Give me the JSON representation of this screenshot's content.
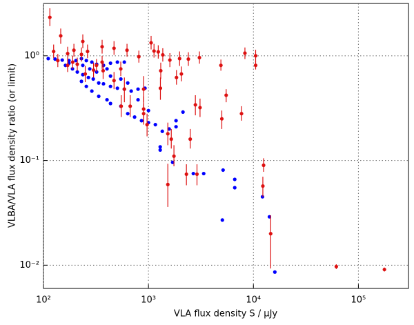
{
  "chart_data": {
    "type": "scatter",
    "xlabel": "VLA flux density S / μJy",
    "ylabel": "VLBA/VLA flux density ratio (or limit)",
    "log_x": true,
    "log_y": true,
    "grid": true,
    "xlim": [
      100,
      300000
    ],
    "ylim": [
      0.006,
      3.16
    ],
    "xticks": [
      {
        "value": 100,
        "label": "10²"
      },
      {
        "value": 1000,
        "label": "10³"
      },
      {
        "value": 10000,
        "label": "10⁴"
      },
      {
        "value": 100000,
        "label": "10⁵"
      }
    ],
    "yticks": [
      {
        "value": 0.01,
        "label": "10⁻²"
      },
      {
        "value": 0.1,
        "label": "10⁻¹"
      },
      {
        "value": 1,
        "label": "10⁰"
      }
    ],
    "series": [
      {
        "color": "#0000ff",
        "x": [
          111,
          129,
          151,
          175,
          204,
          230,
          256,
          289,
          321,
          373,
          435,
          506,
          589,
          162,
          189,
          210,
          237,
          268,
          298,
          336,
          373,
          435,
          506,
          589,
          685,
          796,
          927,
          230,
          256,
          289,
          336,
          403,
          435,
          546,
          635,
          738,
          859,
          1000,
          1164,
          1355,
          1575,
          1832,
          2133,
          1832,
          1294,
          1294,
          1700,
          2677,
          3360,
          5140,
          6640,
          6640,
          5060,
          14200,
          16000,
          12200,
          237,
          321,
          435,
          635,
          796,
          1000,
          175,
          276,
          403,
          546
        ],
        "values": [
          0.94,
          0.93,
          0.91,
          0.9,
          0.9,
          0.94,
          0.9,
          0.87,
          0.83,
          0.81,
          0.85,
          0.87,
          0.87,
          0.81,
          0.75,
          0.7,
          0.66,
          0.62,
          0.6,
          0.55,
          0.54,
          0.51,
          0.49,
          0.48,
          0.46,
          0.48,
          0.49,
          0.57,
          0.51,
          0.46,
          0.41,
          0.38,
          0.35,
          0.33,
          0.28,
          0.26,
          0.24,
          0.23,
          0.22,
          0.19,
          0.2,
          0.21,
          0.29,
          0.24,
          0.135,
          0.126,
          0.096,
          0.075,
          0.075,
          0.081,
          0.066,
          0.055,
          0.027,
          0.029,
          0.0086,
          0.045,
          0.81,
          0.7,
          0.64,
          0.55,
          0.38,
          0.3,
          0.85,
          0.75,
          0.75,
          0.6
        ]
      },
      {
        "color": "#dd1111",
        "x": [
          115,
          125,
          146,
          137,
          195,
          237,
          263,
          362,
          470,
          625,
          810,
          1060,
          1130,
          1240,
          1370,
          1310,
          1600,
          1980,
          2400,
          3060,
          4900,
          8300,
          10500,
          10500,
          2060,
          1850,
          1300,
          900,
          590,
          470,
          370,
          300,
          250,
          190,
          210,
          170,
          170,
          230,
          5500,
          2800,
          3100,
          5000,
          7700,
          900,
          970,
          900,
          670,
          550,
          1530,
          1650,
          2500,
          1750,
          2300,
          2900,
          1530,
          12500,
          12300,
          14600,
          61600,
          177000,
          545,
          362,
          320
        ],
        "values": [
          2.33,
          1.1,
          1.55,
          0.9,
          1.13,
          1.37,
          1.1,
          1.22,
          1.18,
          1.13,
          0.98,
          1.33,
          1.11,
          1.09,
          1.02,
          0.72,
          0.91,
          0.94,
          0.93,
          0.96,
          0.81,
          1.06,
          1.0,
          0.81,
          0.67,
          0.62,
          0.49,
          0.48,
          0.48,
          0.58,
          0.72,
          0.73,
          0.67,
          0.87,
          0.83,
          0.81,
          1.05,
          1.03,
          0.42,
          0.34,
          0.32,
          0.25,
          0.28,
          0.31,
          0.22,
          0.28,
          0.33,
          0.33,
          0.18,
          0.16,
          0.16,
          0.11,
          0.074,
          0.074,
          0.059,
          0.09,
          0.057,
          0.02,
          0.0097,
          0.0091,
          0.75,
          0.87,
          0.81
        ],
        "ylow": [
          1.92,
          0.95,
          1.3,
          0.78,
          0.98,
          1.18,
          0.95,
          1.05,
          1.02,
          0.98,
          0.86,
          1.15,
          0.96,
          0.94,
          0.88,
          0.6,
          0.78,
          0.8,
          0.8,
          0.84,
          0.72,
          0.93,
          0.87,
          0.74,
          0.57,
          0.53,
          0.38,
          0.36,
          0.36,
          0.48,
          0.6,
          0.62,
          0.56,
          0.75,
          0.72,
          0.7,
          0.9,
          0.88,
          0.36,
          0.27,
          0.26,
          0.2,
          0.24,
          0.23,
          0.17,
          0.22,
          0.26,
          0.26,
          0.14,
          0.13,
          0.13,
          0.088,
          0.058,
          0.058,
          0.036,
          0.078,
          0.045,
          0.0093,
          0.0092,
          0.0087,
          0.64,
          0.75,
          0.7
        ],
        "yhigh": [
          2.84,
          1.28,
          1.82,
          1.04,
          1.3,
          1.6,
          1.28,
          1.42,
          1.38,
          1.3,
          1.12,
          1.55,
          1.3,
          1.26,
          1.18,
          0.86,
          1.06,
          1.1,
          1.08,
          1.1,
          0.92,
          1.2,
          1.14,
          0.88,
          0.79,
          0.73,
          0.62,
          0.64,
          0.62,
          0.7,
          0.86,
          0.86,
          0.8,
          1.0,
          0.96,
          0.94,
          1.22,
          1.2,
          0.48,
          0.42,
          0.39,
          0.3,
          0.33,
          0.41,
          0.28,
          0.35,
          0.42,
          0.42,
          0.23,
          0.2,
          0.2,
          0.14,
          0.092,
          0.092,
          0.093,
          0.105,
          0.07,
          0.03,
          0.0102,
          0.0095,
          0.88,
          1.0,
          0.93
        ]
      }
    ]
  }
}
